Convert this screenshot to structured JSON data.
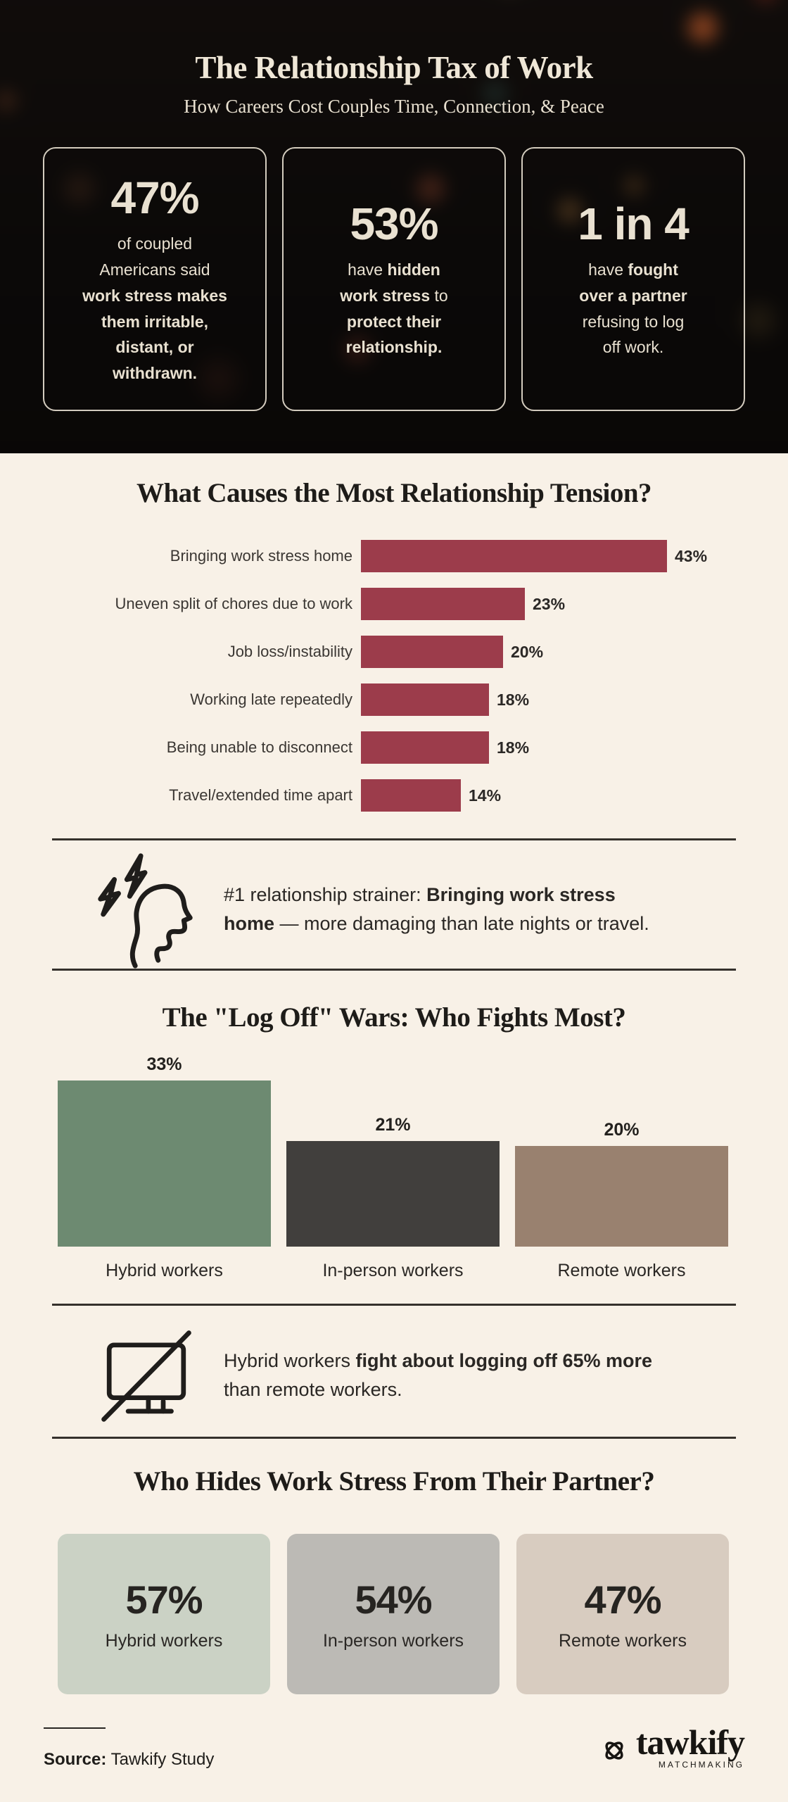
{
  "colors": {
    "page_bg": "#f8f1e7",
    "header_bg": "#0c0a08",
    "header_text": "#e9e1d1",
    "ink": "#24221f",
    "maroon": "#9c3c4b",
    "green": "#6d8a71",
    "charcoal": "#413f3d",
    "taupe": "#99816f",
    "sage_card": "#cbd2c5",
    "gray_card": "#bcbab5",
    "beige_card": "#d8ccc0",
    "divider": "#35312c"
  },
  "header": {
    "title": "The Relationship Tax of Work",
    "subtitle": "How Careers Cost Couples Time, Connection, & Peace",
    "cards": [
      {
        "stat": "47%",
        "lines": [
          [
            {
              "t": "of coupled"
            }
          ],
          [
            {
              "t": "Americans said"
            }
          ],
          [
            {
              "t": "work stress makes",
              "b": true
            }
          ],
          [
            {
              "t": "them irritable,",
              "b": true
            }
          ],
          [
            {
              "t": "distant, or",
              "b": true
            }
          ],
          [
            {
              "t": "withdrawn.",
              "b": true
            }
          ]
        ]
      },
      {
        "stat": "53%",
        "lines": [
          [
            {
              "t": "have "
            },
            {
              "t": "hidden",
              "b": true
            }
          ],
          [
            {
              "t": "work stress",
              "b": true
            },
            {
              "t": " to"
            }
          ],
          [
            {
              "t": "protect their",
              "b": true
            }
          ],
          [
            {
              "t": "relationship.",
              "b": true
            }
          ]
        ]
      },
      {
        "stat": "1 in 4",
        "lines": [
          [
            {
              "t": "have "
            },
            {
              "t": "fought",
              "b": true
            }
          ],
          [
            {
              "t": "over a partner",
              "b": true
            }
          ],
          [
            {
              "t": "refusing to log"
            }
          ],
          [
            {
              "t": "off work."
            }
          ]
        ]
      }
    ]
  },
  "chart_data": [
    {
      "type": "bar",
      "orientation": "horizontal",
      "title": "What Causes the Most Relationship Tension?",
      "categories": [
        "Bringing work stress home",
        "Uneven split of chores due to work",
        "Job loss/instability",
        "Working late repeatedly",
        "Being unable to disconnect",
        "Travel/extended time apart"
      ],
      "values": [
        43,
        23,
        20,
        18,
        18,
        14
      ],
      "value_labels": [
        "43%",
        "23%",
        "20%",
        "18%",
        "18%",
        "14%"
      ],
      "unit": "%",
      "xlim": [
        0,
        43
      ],
      "grid": false,
      "bar_color": "#9c3c4b",
      "value_label_position": "end-of-bar"
    },
    {
      "type": "bar",
      "orientation": "vertical",
      "title": "The \"Log Off\" Wars: Who Fights Most?",
      "categories": [
        "Hybrid workers",
        "In-person workers",
        "Remote workers"
      ],
      "values": [
        33,
        21,
        20
      ],
      "value_labels": [
        "33%",
        "21%",
        "20%"
      ],
      "unit": "%",
      "ylim": [
        0,
        33
      ],
      "grid": false,
      "colors": [
        "#6d8a71",
        "#413f3d",
        "#99816f"
      ],
      "value_label_position": "above-bar"
    }
  ],
  "callouts": [
    {
      "icon": "stressed-head-icon",
      "lines": [
        [
          {
            "t": "#1 relationship strainer: "
          },
          {
            "t": "Bringing work stress",
            "b": true
          }
        ],
        [
          {
            "t": "home",
            "b": true
          },
          {
            "t": " — more damaging than late nights or travel."
          }
        ]
      ]
    },
    {
      "icon": "logged-off-monitor-icon",
      "lines": [
        [
          {
            "t": "Hybrid workers "
          },
          {
            "t": "fight about logging off 65% more",
            "b": true
          }
        ],
        [
          {
            "t": "than remote workers."
          }
        ]
      ]
    }
  ],
  "hide_section": {
    "title": "Who Hides Work Stress From Their Partner?",
    "cards": [
      {
        "stat": "57%",
        "label": "Hybrid workers",
        "bg": "#cbd2c5"
      },
      {
        "stat": "54%",
        "label": "In-person workers",
        "bg": "#bcbab5"
      },
      {
        "stat": "47%",
        "label": "Remote workers",
        "bg": "#d8ccc0"
      }
    ]
  },
  "footer": {
    "source_label": "Source:",
    "source_text": " Tawkify Study",
    "logo_text": "tawkify",
    "logo_subtext": "MATCHMAKING"
  }
}
